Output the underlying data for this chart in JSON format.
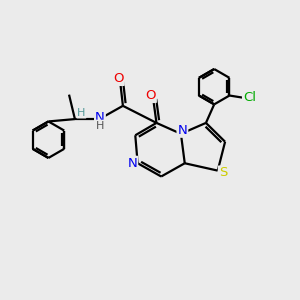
{
  "background_color": "#ebebeb",
  "atom_colors": {
    "C": "#000000",
    "N": "#0000ee",
    "O": "#ee0000",
    "S": "#cccc00",
    "Cl": "#00aa00",
    "H": "#555555"
  },
  "bond_color": "#000000",
  "bond_width": 1.6,
  "font_size": 9.5
}
